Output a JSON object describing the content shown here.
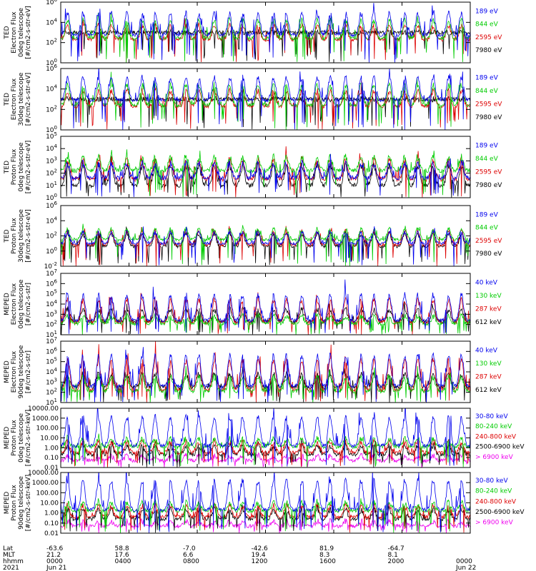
{
  "chart_data": {
    "type": "line",
    "x_axis": {
      "rows": [
        {
          "label": "Lat",
          "values": [
            "-63.6",
            "58.8",
            "-7.0",
            "-42.6",
            "81.9",
            "-64.7",
            ""
          ]
        },
        {
          "label": "MLT",
          "values": [
            "21.2",
            "17.6",
            "6.6",
            "19.4",
            "8.3",
            "8.1",
            ""
          ]
        },
        {
          "label": "hhmm",
          "values": [
            "0000",
            "0400",
            "0800",
            "1200",
            "1600",
            "2000",
            "0000"
          ]
        },
        {
          "label": "2021",
          "values": [
            "Jun 21",
            "",
            "",
            "",
            "",
            "",
            "Jun 22"
          ]
        }
      ],
      "tick_hours": [
        0,
        4,
        8,
        12,
        16,
        20,
        24
      ]
    },
    "panels": [
      {
        "ylabel": [
          "TED",
          "Electron Flux",
          "0deg telescope",
          "[#/cm2-s-str-eV]"
        ],
        "scale": "log",
        "ylim": [
          1,
          1000000
        ],
        "tick_labels": [
          "10^0",
          "10^2",
          "10^4",
          "10^6"
        ],
        "series": [
          {
            "name": "7980 eV",
            "color": "#000000",
            "base": 3,
            "peak": 3
          },
          {
            "name": "2595 eV",
            "color": "#dd0000",
            "base": 2.3,
            "peak": 3.7
          },
          {
            "name": "844 eV",
            "color": "#00cc00",
            "base": 2.4,
            "peak": 4.2
          },
          {
            "name": "189 eV",
            "color": "#0000ee",
            "base": 2.75,
            "peak": 4.9
          }
        ]
      },
      {
        "ylabel": [
          "TED",
          "Electron Flux",
          "30deg telescope",
          "[#/cm2-s-str-eV]"
        ],
        "scale": "log",
        "ylim": [
          1,
          1000000
        ],
        "tick_labels": [
          "10^0",
          "10^2",
          "10^4",
          "10^6"
        ],
        "series": [
          {
            "name": "7980 eV",
            "color": "#000000",
            "base": 3,
            "peak": 3
          },
          {
            "name": "2595 eV",
            "color": "#dd0000",
            "base": 2.3,
            "peak": 3.8
          },
          {
            "name": "844 eV",
            "color": "#00cc00",
            "base": 2.4,
            "peak": 4.4
          },
          {
            "name": "189 eV",
            "color": "#0000ee",
            "base": 2.9,
            "peak": 5.1
          }
        ]
      },
      {
        "ylabel": [
          "TED",
          "Proton Flux",
          "0deg telescope",
          "[#/cm2-s-str-eV]"
        ],
        "scale": "log",
        "ylim": [
          1,
          100000
        ],
        "tick_labels": [
          "10^0",
          "10^1",
          "10^2",
          "10^3",
          "10^4",
          "10^5"
        ],
        "series": [
          {
            "name": "7980 eV",
            "color": "#000000",
            "base": 1,
            "peak": 2.6
          },
          {
            "name": "2595 eV",
            "color": "#dd0000",
            "base": 1.5,
            "peak": 3.1
          },
          {
            "name": "844 eV",
            "color": "#00cc00",
            "base": 2.2,
            "peak": 3.3
          },
          {
            "name": "189 eV",
            "color": "#0000ee",
            "base": 1.6,
            "peak": 2.8
          }
        ]
      },
      {
        "ylabel": [
          "TED",
          "Proton Flux",
          "30deg telescope",
          "[#/cm2-s-str-eV]"
        ],
        "scale": "log",
        "ylim": [
          0.01,
          1000000
        ],
        "tick_labels": [
          "10^-2",
          "10^0",
          "10^2",
          "10^4",
          "10^6"
        ],
        "series": [
          {
            "name": "7980 eV",
            "color": "#000000",
            "base": 0.6,
            "peak": 2.3
          },
          {
            "name": "2595 eV",
            "color": "#dd0000",
            "base": 0.8,
            "peak": 2.6
          },
          {
            "name": "844 eV",
            "color": "#00cc00",
            "base": 1.5,
            "peak": 2.9
          },
          {
            "name": "189 eV",
            "color": "#0000ee",
            "base": 1,
            "peak": 2.5
          }
        ]
      },
      {
        "ylabel": [
          "MEPED",
          "Electron Flux",
          "0deg telescope",
          "[#/cm2-s-str]"
        ],
        "scale": "log",
        "ylim": [
          10,
          10000000
        ],
        "tick_labels": [
          "10^1",
          "10^2",
          "10^3",
          "10^4",
          "10^5",
          "10^6",
          "10^7"
        ],
        "series": [
          {
            "name": "612 keV",
            "color": "#000000",
            "base": 2.3,
            "peak": 3.5
          },
          {
            "name": "287 keV",
            "color": "#dd0000",
            "base": 2.2,
            "peak": 4.4
          },
          {
            "name": "130 keV",
            "color": "#00cc00",
            "base": 2.1,
            "peak": 2.8
          },
          {
            "name": "40 keV",
            "color": "#0000ee",
            "base": 2.4,
            "peak": 4.9
          }
        ]
      },
      {
        "ylabel": [
          "MEPED",
          "Electron Flux",
          "90deg telescope",
          "[#/cm2-s-str]"
        ],
        "scale": "log",
        "ylim": [
          10,
          10000000
        ],
        "tick_labels": [
          "10^1",
          "10^2",
          "10^3",
          "10^4",
          "10^5",
          "10^6",
          "10^7"
        ],
        "series": [
          {
            "name": "612 keV",
            "color": "#000000",
            "base": 2.5,
            "peak": 3.8
          },
          {
            "name": "287 keV",
            "color": "#dd0000",
            "base": 2.2,
            "peak": 5.1
          },
          {
            "name": "130 keV",
            "color": "#00cc00",
            "base": 2.1,
            "peak": 3.5
          },
          {
            "name": "40 keV",
            "color": "#0000ee",
            "base": 2.6,
            "peak": 5.6
          }
        ]
      },
      {
        "ylabel": [
          "MEPED",
          "Proton Flux",
          "0deg telescope",
          "[#/cm2-s-str-keV]"
        ],
        "scale": "log",
        "ylim": [
          0.01,
          10000
        ],
        "tick_labels": [
          "0.01",
          "0.10",
          "1.00",
          "10.00",
          "100.00",
          "1000.00",
          "10000.00"
        ],
        "series": [
          {
            "name": "> 6900 keV",
            "color": "#ee00ee",
            "base": -1.3,
            "peak": -0.8
          },
          {
            "name": "2500-6900 keV",
            "color": "#000000",
            "base": -0.7,
            "peak": 0.2
          },
          {
            "name": "240-800 keV",
            "color": "#dd0000",
            "base": -0.5,
            "peak": 0.6
          },
          {
            "name": "80-240 keV",
            "color": "#00cc00",
            "base": 0.1,
            "peak": 0.9
          },
          {
            "name": "30-80 keV",
            "color": "#0000ee",
            "base": 0.2,
            "peak": 3.1
          }
        ]
      },
      {
        "ylabel": [
          "MEPED",
          "Proton Flux",
          "90deg telescope",
          "[#/cm2-s-str-keV]"
        ],
        "scale": "log",
        "ylim": [
          0.01,
          10000
        ],
        "tick_labels": [
          "0.01",
          "0.10",
          "1.00",
          "10.00",
          "100.00",
          "1000.00",
          "10000.00"
        ],
        "series": [
          {
            "name": "> 6900 keV",
            "color": "#ee00ee",
            "base": -1.3,
            "peak": -0.8
          },
          {
            "name": "2500-6900 keV",
            "color": "#000000",
            "base": -0.6,
            "peak": 0.3
          },
          {
            "name": "240-800 keV",
            "color": "#dd0000",
            "base": -0.4,
            "peak": 0.7
          },
          {
            "name": "80-240 keV",
            "color": "#00cc00",
            "base": 0.2,
            "peak": 1
          },
          {
            "name": "30-80 keV",
            "color": "#0000ee",
            "base": 0.3,
            "peak": 3.2
          }
        ]
      }
    ]
  }
}
